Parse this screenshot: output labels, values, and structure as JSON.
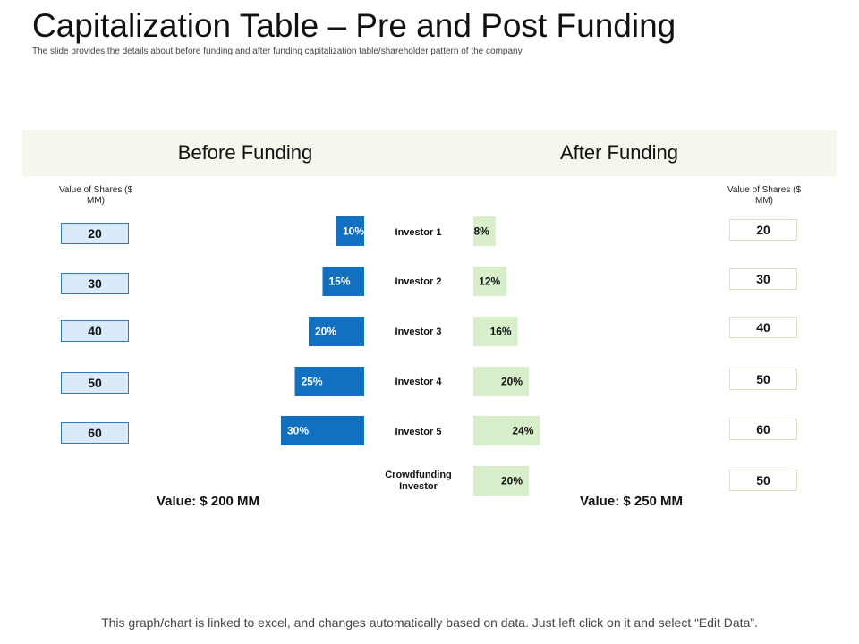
{
  "title": "Capitalization Table – Pre and Post Funding",
  "subtitle": "The slide provides the details about before funding and after funding capitalization table/shareholder pattern of the company",
  "before": {
    "heading": "Before Funding",
    "value_label": "Value of Shares ($ MM)",
    "total": "Value: $ 200 MM"
  },
  "after": {
    "heading": "After Funding",
    "value_label": "Value of Shares ($ MM)",
    "total": "Value: $ 250 MM"
  },
  "footer": "This graph/chart is linked to excel, and changes automatically based on data. Just left click on it and select “Edit Data”.",
  "colors": {
    "before_bar": "#1170bf",
    "after_bar": "#d8eecb",
    "band": "#f4f8ec"
  },
  "chart_data": {
    "type": "bar",
    "categories": [
      "Investor 1",
      "Investor 2",
      "Investor 3",
      "Investor 4",
      "Investor 5",
      "Crowdfunding Investor"
    ],
    "before_pct": [
      10,
      15,
      20,
      25,
      30
    ],
    "before_labels": [
      "10%",
      "15%",
      "20%",
      "25%",
      "30%"
    ],
    "before_values": [
      "20",
      "30",
      "40",
      "50",
      "60"
    ],
    "after_pct": [
      8,
      12,
      16,
      20,
      24,
      20
    ],
    "after_labels": [
      "8%",
      "12%",
      "16%",
      "20%",
      "24%",
      "20%"
    ],
    "after_values": [
      "20",
      "30",
      "40",
      "50",
      "60",
      "50"
    ]
  }
}
